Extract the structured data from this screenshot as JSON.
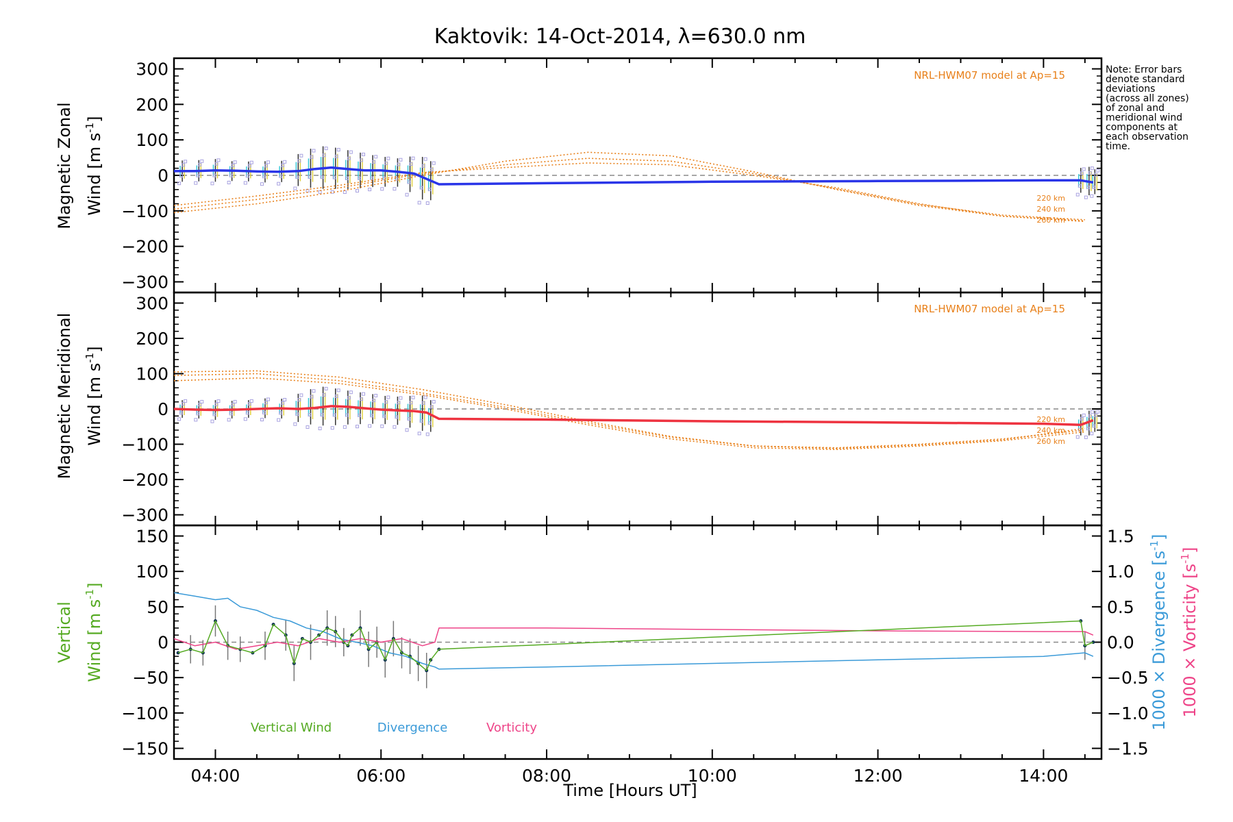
{
  "title": "Kaktovik: 14-Oct-2014, λ=630.0 nm",
  "note_lines": [
    "Note: Error bars",
    "denote standard",
    "deviations",
    "(across all zones)",
    "of zonal and",
    "meridional wind",
    "components at",
    "each observation",
    "time."
  ],
  "colors": {
    "zonal": "#2a35e8",
    "meridional": "#ee3340",
    "model": "#e8801a",
    "vertical": "#55aa22",
    "divergence": "#3a9ad8",
    "vorticity": "#ee4488",
    "scatter": "#a8a2e0",
    "cyan": "#38c8d8",
    "zero": "#888888"
  },
  "chart_data": [
    {
      "type": "line",
      "panel": "zonal",
      "ylabel_line1": "Magnetic Zonal",
      "ylabel_line2": "Wind [m s",
      "ylabel_sup": "-1",
      "ylabel_close": "]",
      "ylim": [
        -330,
        330
      ],
      "yticks": [
        "300",
        "200",
        "100",
        "0",
        "−100",
        "−200",
        "−300"
      ],
      "ytick_values": [
        300,
        200,
        100,
        0,
        -100,
        -200,
        -300
      ],
      "model_label": "NRL-HWM07 model at Ap=15",
      "altitudes": [
        "220 km",
        "240 km",
        "260 km"
      ],
      "model_series": [
        {
          "name": "220 km",
          "x": [
            3.5,
            4.5,
            5.5,
            6.5,
            7.5,
            8.5,
            9.5,
            10.5,
            11.5,
            12.5,
            13.5,
            14.5
          ],
          "y": [
            -105,
            -80,
            -45,
            0,
            40,
            65,
            55,
            10,
            -40,
            -85,
            -115,
            -128
          ]
        },
        {
          "name": "240 km",
          "x": [
            3.5,
            4.5,
            5.5,
            6.5,
            7.5,
            8.5,
            9.5,
            10.5,
            11.5,
            12.5,
            13.5,
            14.5
          ],
          "y": [
            -95,
            -68,
            -35,
            5,
            30,
            48,
            40,
            5,
            -38,
            -82,
            -112,
            -125
          ]
        },
        {
          "name": "260 km",
          "x": [
            3.5,
            4.5,
            5.5,
            6.5,
            7.5,
            8.5,
            9.5,
            10.5,
            11.5,
            12.5,
            13.5,
            14.5
          ],
          "y": [
            -85,
            -58,
            -28,
            8,
            22,
            35,
            30,
            0,
            -35,
            -80,
            -115,
            -130
          ]
        }
      ],
      "series": [
        {
          "name": "zonal",
          "x": [
            3.5,
            3.75,
            4.0,
            4.25,
            4.5,
            4.75,
            5.0,
            5.2,
            5.4,
            5.6,
            5.8,
            6.0,
            6.2,
            6.4,
            6.55,
            6.7,
            8.0,
            10.0,
            12.0,
            14.0,
            14.45,
            14.6
          ],
          "y": [
            12,
            12,
            14,
            13,
            11,
            10,
            12,
            18,
            22,
            18,
            14,
            14,
            10,
            5,
            -10,
            -25,
            -22,
            -18,
            -16,
            -14,
            -14,
            -20
          ]
        }
      ],
      "error_bars": {
        "x": [
          3.6,
          3.8,
          4.0,
          4.2,
          4.4,
          4.6,
          4.8,
          5.0,
          5.15,
          5.3,
          5.45,
          5.6,
          5.75,
          5.9,
          6.05,
          6.2,
          6.35,
          6.5,
          6.6,
          14.45,
          14.55,
          14.62
        ],
        "y": [
          12,
          13,
          14,
          12,
          11,
          10,
          11,
          15,
          20,
          22,
          20,
          16,
          14,
          12,
          10,
          8,
          3,
          -8,
          -15,
          -14,
          -16,
          -18
        ],
        "sd": [
          30,
          30,
          32,
          28,
          28,
          30,
          30,
          45,
          55,
          60,
          58,
          55,
          50,
          45,
          42,
          40,
          50,
          60,
          55,
          35,
          40,
          35
        ]
      }
    },
    {
      "type": "line",
      "panel": "meridional",
      "ylabel_line1": "Magnetic Meridional",
      "ylabel_line2": "Wind [m s",
      "ylabel_sup": "-1",
      "ylabel_close": "]",
      "ylim": [
        -330,
        330
      ],
      "yticks": [
        "300",
        "200",
        "100",
        "0",
        "−100",
        "−200",
        "−300"
      ],
      "ytick_values": [
        300,
        200,
        100,
        0,
        -100,
        -200,
        -300
      ],
      "model_label": "NRL-HWM07 model at Ap=15",
      "altitudes": [
        "220 km",
        "240 km",
        "260 km"
      ],
      "model_series": [
        {
          "name": "220 km",
          "x": [
            3.5,
            4.5,
            5.5,
            6.5,
            7.5,
            8.5,
            9.5,
            10.5,
            11.5,
            12.5,
            13.5,
            14.5
          ],
          "y": [
            95,
            100,
            80,
            45,
            5,
            -40,
            -80,
            -105,
            -110,
            -100,
            -85,
            -60
          ]
        },
        {
          "name": "240 km",
          "x": [
            3.5,
            4.5,
            5.5,
            6.5,
            7.5,
            8.5,
            9.5,
            10.5,
            11.5,
            12.5,
            13.5,
            14.5
          ],
          "y": [
            105,
            108,
            90,
            55,
            12,
            -35,
            -78,
            -105,
            -112,
            -102,
            -88,
            -55
          ]
        },
        {
          "name": "260 km",
          "x": [
            3.5,
            4.5,
            5.5,
            6.5,
            7.5,
            8.5,
            9.5,
            10.5,
            11.5,
            12.5,
            13.5,
            14.5
          ],
          "y": [
            80,
            88,
            72,
            40,
            0,
            -45,
            -85,
            -110,
            -115,
            -105,
            -90,
            -65
          ]
        }
      ],
      "series": [
        {
          "name": "meridional",
          "x": [
            3.5,
            3.75,
            4.0,
            4.25,
            4.5,
            4.75,
            5.0,
            5.2,
            5.4,
            5.6,
            5.8,
            6.0,
            6.2,
            6.4,
            6.55,
            6.7,
            8.0,
            10.0,
            12.0,
            14.0,
            14.45,
            14.6
          ],
          "y": [
            0,
            -2,
            -3,
            -2,
            0,
            2,
            0,
            3,
            8,
            6,
            2,
            -2,
            -4,
            -6,
            -10,
            -28,
            -30,
            -35,
            -38,
            -42,
            -45,
            -32
          ]
        }
      ],
      "error_bars": {
        "x": [
          3.6,
          3.8,
          4.0,
          4.2,
          4.4,
          4.6,
          4.8,
          5.0,
          5.15,
          5.3,
          5.45,
          5.6,
          5.75,
          5.9,
          6.05,
          6.2,
          6.35,
          6.5,
          6.6,
          14.45,
          14.55,
          14.62
        ],
        "y": [
          0,
          -2,
          -3,
          -2,
          0,
          2,
          1,
          3,
          6,
          8,
          6,
          4,
          2,
          0,
          -3,
          -5,
          -8,
          -12,
          -20,
          -45,
          -40,
          -35
        ],
        "sd": [
          25,
          25,
          28,
          25,
          25,
          28,
          28,
          40,
          50,
          55,
          52,
          48,
          45,
          42,
          40,
          40,
          45,
          50,
          45,
          30,
          35,
          30
        ]
      }
    },
    {
      "type": "line",
      "panel": "vertical",
      "ylabel_line1": "Vertical",
      "ylabel_line2": "Wind [m s",
      "ylabel_sup": "-1",
      "ylabel_close": "]",
      "ylim": [
        -165,
        165
      ],
      "yticks": [
        "150",
        "100",
        "50",
        "0",
        "−50",
        "−100",
        "−150"
      ],
      "ytick_values": [
        150,
        100,
        50,
        0,
        -50,
        -100,
        -150
      ],
      "y2lim": [
        -1.65,
        1.65
      ],
      "y2ticks": [
        "1.5",
        "1.0",
        "0.5",
        "0.0",
        "−0.5",
        "−1.0",
        "−1.5"
      ],
      "y2tick_values": [
        1.5,
        1.0,
        0.5,
        0.0,
        -0.5,
        -1.0,
        -1.5
      ],
      "y2label_div": "1000 × Divergence [s",
      "y2label_vor": "1000 × Vorticity [s",
      "y2label_sup": "-1",
      "y2label_close": "]",
      "legend": [
        "Vertical Wind",
        "Divergence",
        "Vorticity"
      ],
      "series": [
        {
          "name": "Vertical Wind",
          "x": [
            3.55,
            3.7,
            3.85,
            4.0,
            4.15,
            4.3,
            4.45,
            4.6,
            4.7,
            4.85,
            4.95,
            5.05,
            5.15,
            5.25,
            5.35,
            5.45,
            5.55,
            5.6,
            5.65,
            5.75,
            5.85,
            5.95,
            6.05,
            6.15,
            6.25,
            6.35,
            6.45,
            6.55,
            6.6,
            6.7,
            14.45,
            14.5,
            14.6
          ],
          "y": [
            -15,
            -10,
            -15,
            30,
            -5,
            -10,
            -15,
            -5,
            25,
            10,
            -30,
            5,
            0,
            10,
            20,
            15,
            0,
            -5,
            10,
            20,
            -10,
            0,
            -25,
            5,
            -15,
            -20,
            -30,
            -40,
            -25,
            -10,
            30,
            -5,
            0
          ]
        },
        {
          "name": "Divergence",
          "x": [
            3.5,
            3.75,
            4.0,
            4.15,
            4.3,
            4.5,
            4.7,
            4.9,
            5.1,
            5.3,
            5.5,
            5.7,
            5.9,
            6.1,
            6.3,
            6.5,
            6.65,
            6.7,
            8.0,
            10.0,
            12.0,
            14.0,
            14.5,
            14.6
          ],
          "y": [
            0.7,
            0.65,
            0.6,
            0.62,
            0.5,
            0.45,
            0.35,
            0.3,
            0.2,
            0.15,
            0.05,
            0.0,
            -0.05,
            -0.15,
            -0.2,
            -0.3,
            -0.35,
            -0.38,
            -0.35,
            -0.3,
            -0.25,
            -0.2,
            -0.15,
            -0.2
          ]
        },
        {
          "name": "Vorticity",
          "x": [
            3.5,
            3.75,
            4.0,
            4.25,
            4.5,
            4.75,
            5.0,
            5.25,
            5.5,
            5.75,
            6.0,
            6.25,
            6.5,
            6.65,
            6.7,
            8.0,
            10.0,
            12.0,
            14.0,
            14.5,
            14.6
          ],
          "y": [
            0.05,
            -0.05,
            0.0,
            -0.1,
            -0.05,
            0.0,
            -0.05,
            0.05,
            0.0,
            0.05,
            0.0,
            0.05,
            -0.05,
            0.0,
            0.2,
            0.2,
            0.18,
            0.16,
            0.15,
            0.15,
            0.1
          ]
        }
      ],
      "error_bars": {
        "x": [
          3.7,
          3.85,
          4.0,
          4.15,
          4.3,
          4.6,
          4.85,
          4.95,
          5.15,
          5.35,
          5.45,
          5.55,
          5.75,
          5.85,
          5.95,
          6.05,
          6.15,
          6.25,
          6.35,
          6.45,
          6.55,
          14.5
        ],
        "y": [
          -10,
          -15,
          30,
          -5,
          -10,
          -5,
          10,
          -30,
          0,
          20,
          15,
          0,
          20,
          -10,
          0,
          -25,
          5,
          -15,
          -20,
          -30,
          -40,
          -5
        ],
        "sd": [
          20,
          18,
          22,
          20,
          18,
          20,
          22,
          25,
          25,
          25,
          22,
          20,
          25,
          25,
          22,
          25,
          25,
          22,
          25,
          25,
          25,
          20
        ]
      }
    }
  ],
  "xaxis": {
    "xlim": [
      3.5,
      14.7
    ],
    "ticks": [
      "04:00",
      "06:00",
      "08:00",
      "10:00",
      "12:00",
      "14:00"
    ],
    "tick_values": [
      4,
      6,
      8,
      10,
      12,
      14
    ],
    "label": "Time [Hours UT]"
  }
}
